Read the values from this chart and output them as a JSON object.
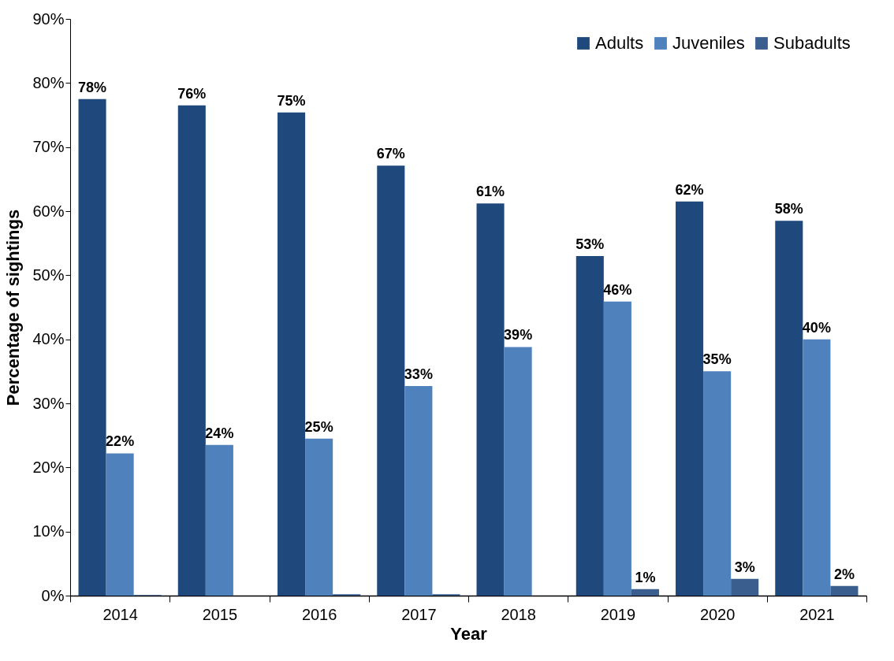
{
  "chart_data": {
    "type": "bar",
    "xlabel": "Year",
    "ylabel": "Percentage of sightings",
    "categories": [
      "2014",
      "2015",
      "2016",
      "2017",
      "2018",
      "2019",
      "2020",
      "2021"
    ],
    "series": [
      {
        "name": "Adults",
        "color": "#1f497d",
        "values": [
          77.5,
          76.5,
          75.4,
          67.1,
          61.2,
          53.0,
          61.5,
          58.5
        ],
        "value_labels": [
          "78%",
          "76%",
          "75%",
          "67%",
          "61%",
          "53%",
          "62%",
          "58%"
        ]
      },
      {
        "name": "Juveniles",
        "color": "#4f81bd",
        "values": [
          22.2,
          23.5,
          24.5,
          32.7,
          38.8,
          45.9,
          35.0,
          40.0
        ],
        "value_labels": [
          "22%",
          "24%",
          "25%",
          "33%",
          "39%",
          "46%",
          "35%",
          "40%"
        ]
      },
      {
        "name": "Subadults",
        "color": "#3a5f8f",
        "values": [
          0.1,
          0,
          0.2,
          0.2,
          0,
          1.0,
          2.6,
          1.5
        ],
        "value_labels": [
          null,
          null,
          null,
          null,
          null,
          "1%",
          "3%",
          "2%"
        ]
      }
    ],
    "ylim": [
      0,
      90
    ],
    "yticks": [
      {
        "value": 0,
        "label": "0%"
      },
      {
        "value": 10,
        "label": "10%"
      },
      {
        "value": 20,
        "label": "20%"
      },
      {
        "value": 30,
        "label": "30%"
      },
      {
        "value": 40,
        "label": "40%"
      },
      {
        "value": 50,
        "label": "50%"
      },
      {
        "value": 60,
        "label": "60%"
      },
      {
        "value": 70,
        "label": "70%"
      },
      {
        "value": 80,
        "label": "80%"
      },
      {
        "value": 90,
        "label": "90%"
      }
    ],
    "legend": "top right",
    "grid": false
  }
}
